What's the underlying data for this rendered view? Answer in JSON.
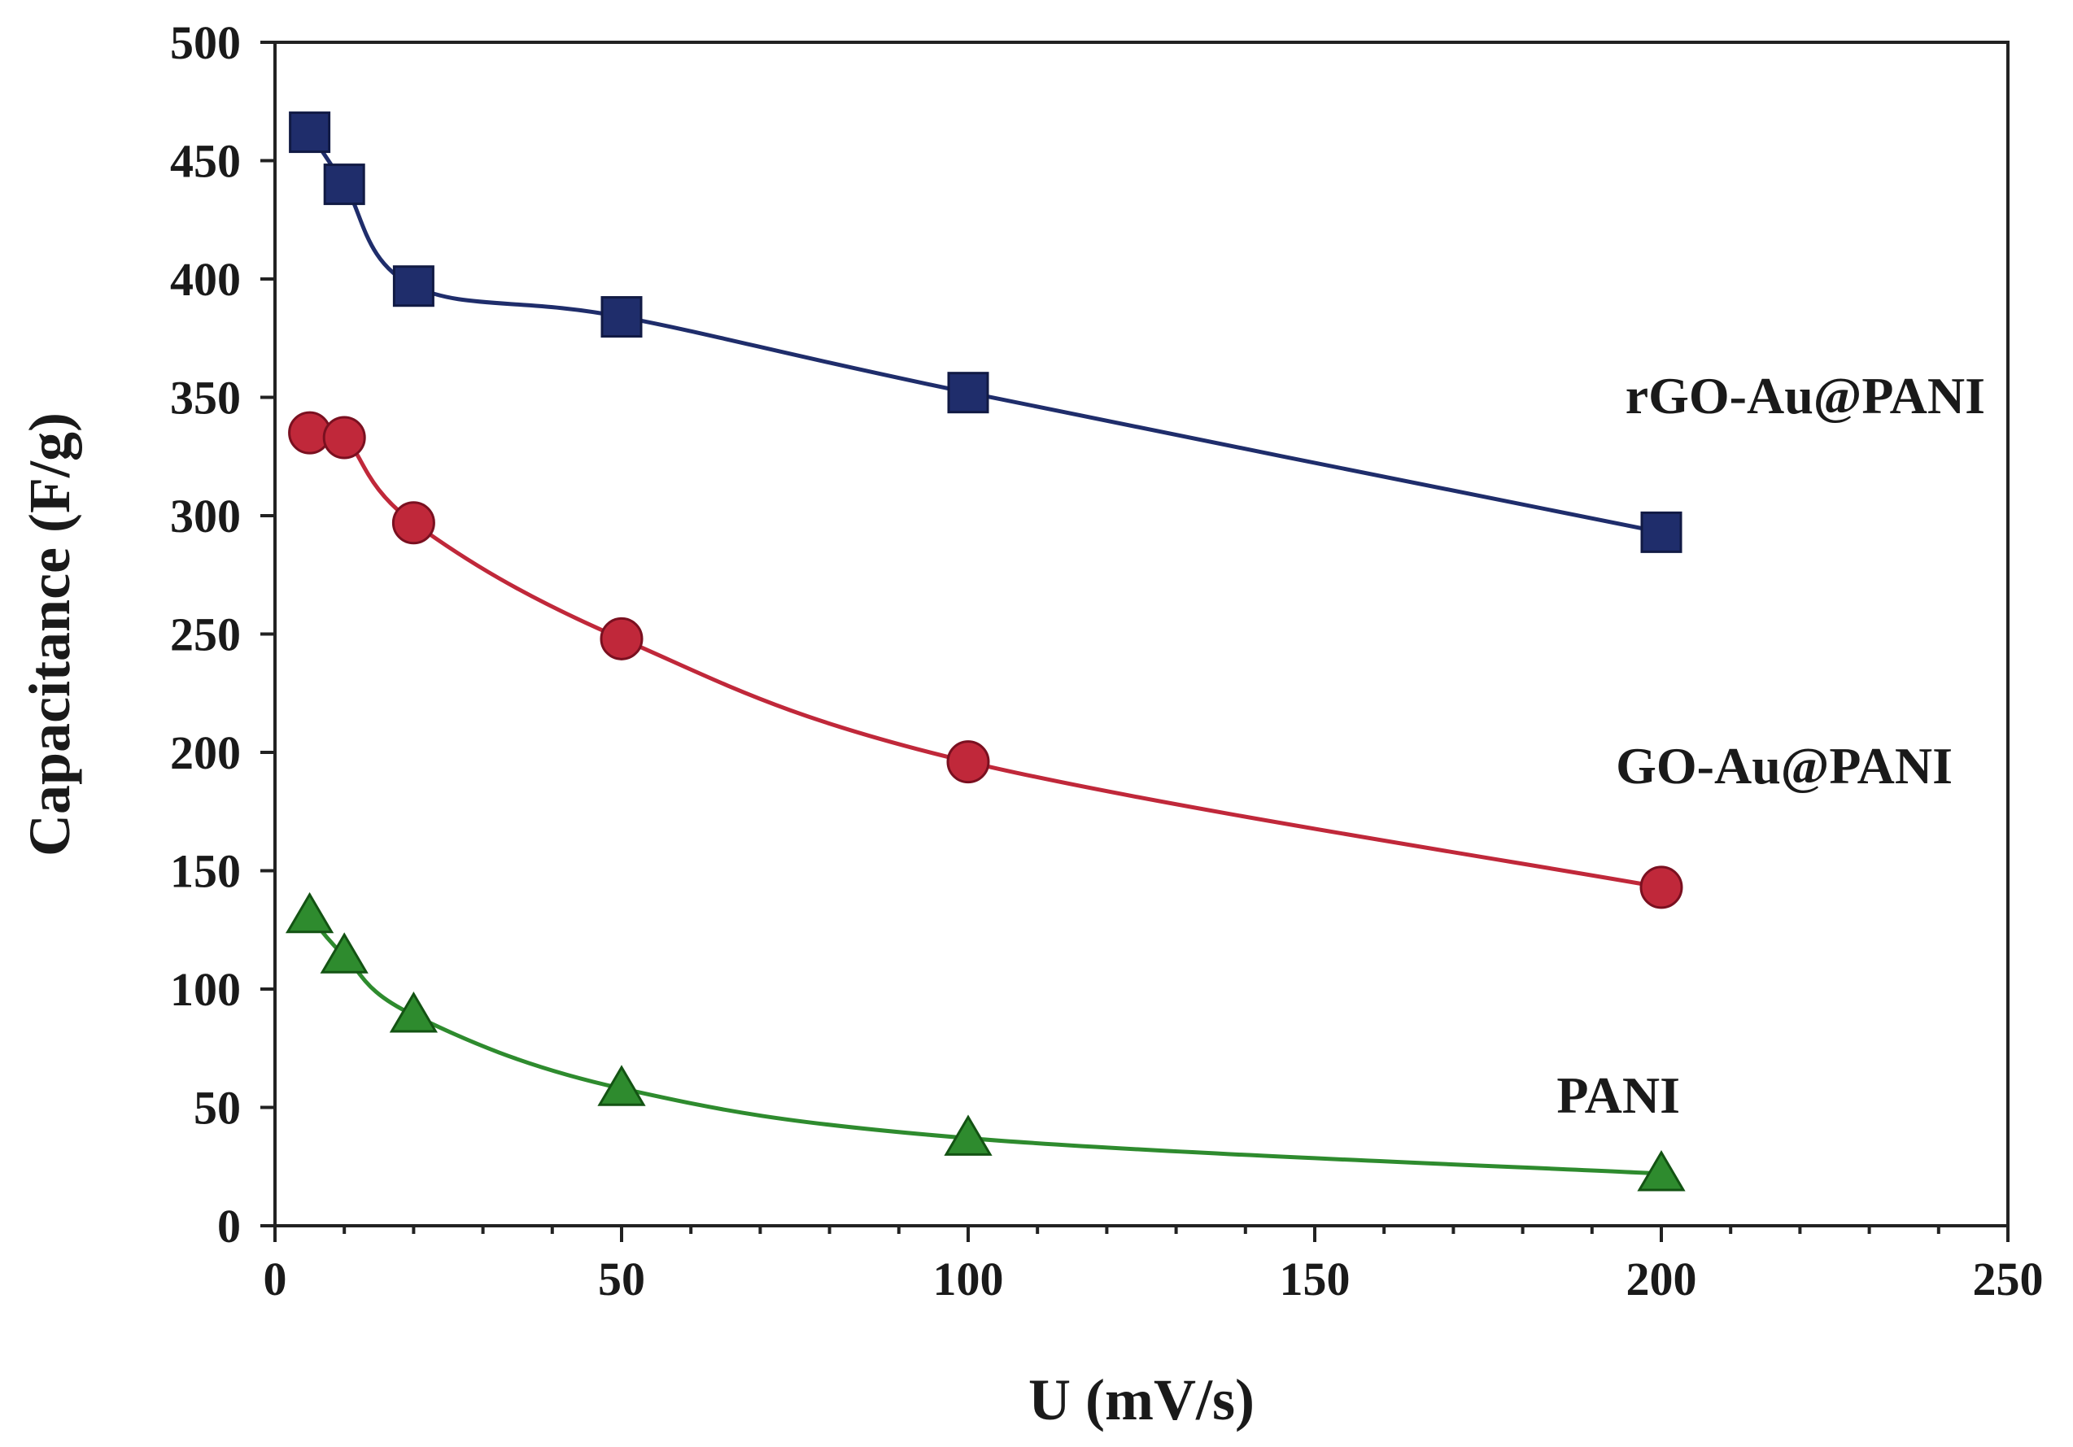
{
  "chart_data": {
    "type": "line",
    "title": "",
    "xlabel": "U (mV/s)",
    "ylabel": "Capacitance (F/g)",
    "xlim": [
      0,
      250
    ],
    "ylim": [
      0,
      500
    ],
    "xticks": [
      0,
      50,
      100,
      150,
      200,
      250
    ],
    "yticks": [
      0,
      50,
      100,
      150,
      200,
      250,
      300,
      350,
      400,
      450,
      500
    ],
    "grid": false,
    "legend": "inline-labels",
    "series": [
      {
        "name": "rGO-Au@PANI",
        "marker": "square",
        "color": "#1f2d6b",
        "x": [
          5,
          10,
          20,
          50,
          100,
          200
        ],
        "y": [
          462,
          440,
          397,
          384,
          352,
          293
        ]
      },
      {
        "name": "GO-Au@PANI",
        "marker": "circle",
        "color": "#c0283a",
        "x": [
          5,
          10,
          20,
          50,
          100,
          200
        ],
        "y": [
          335,
          333,
          297,
          248,
          196,
          143
        ]
      },
      {
        "name": "PANI",
        "marker": "triangle",
        "color": "#2e8b2e",
        "x": [
          5,
          10,
          20,
          50,
          100,
          200
        ],
        "y": [
          131,
          114,
          89,
          58,
          37,
          22
        ]
      }
    ]
  }
}
